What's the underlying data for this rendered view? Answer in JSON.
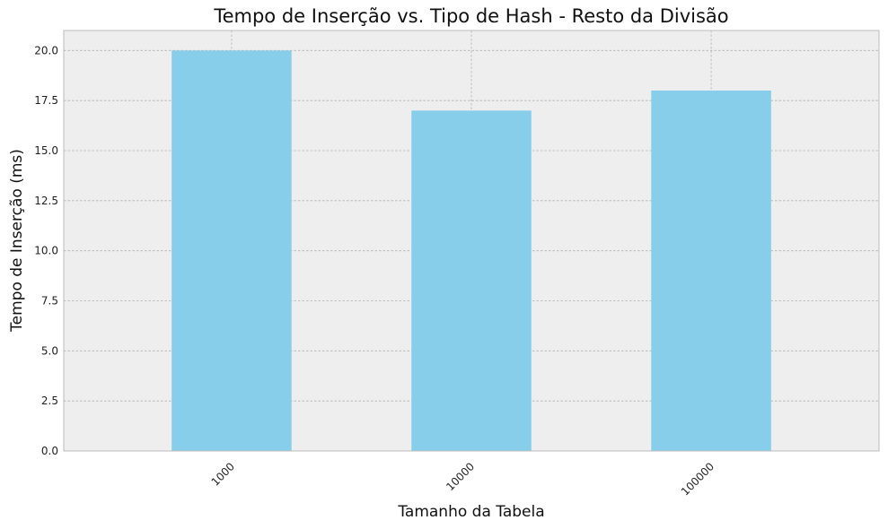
{
  "chart_data": {
    "type": "bar",
    "title": "Tempo de Inserção vs. Tipo de Hash - Resto da Divisão",
    "xlabel": "Tamanho da Tabela",
    "ylabel": "Tempo de Inserção (ms)",
    "categories": [
      "1000",
      "10000",
      "100000"
    ],
    "values": [
      20,
      17,
      18
    ],
    "ylim": [
      0,
      21
    ],
    "yticks": [
      "0.0",
      "2.5",
      "5.0",
      "7.5",
      "10.0",
      "12.5",
      "15.0",
      "17.5",
      "20.0"
    ],
    "grid": true,
    "x_tick_rotation_deg": 45,
    "colors": {
      "bar": "#87ceeb",
      "plot_background": "#eeeeee",
      "grid": "#b2b2b2",
      "frame": "#bcbcbc"
    }
  }
}
